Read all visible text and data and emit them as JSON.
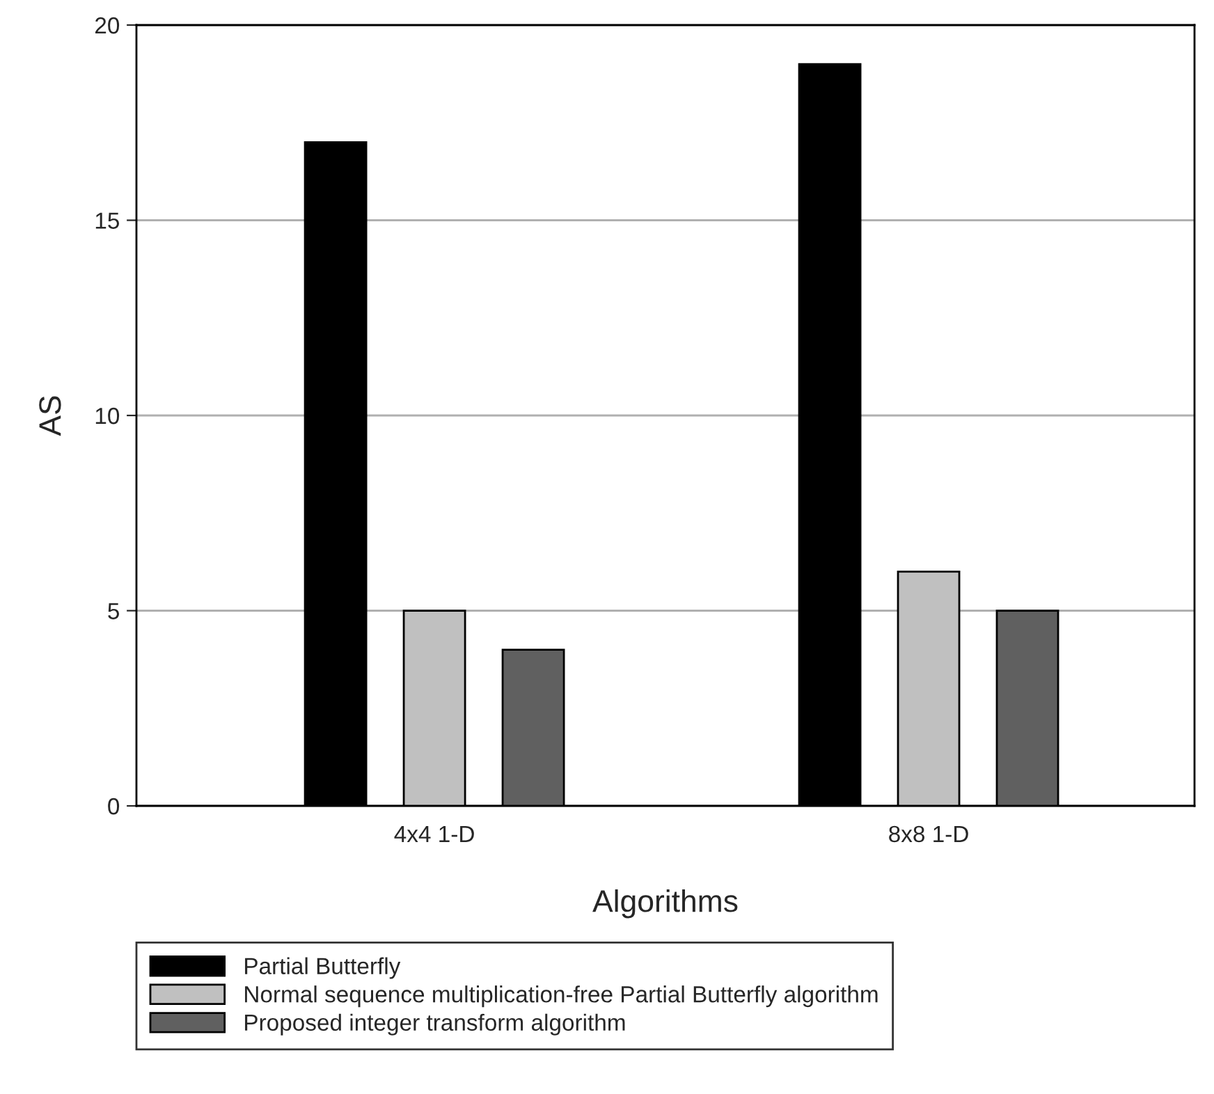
{
  "chart_data": {
    "type": "bar",
    "xlabel": "Algorithms",
    "ylabel": "AS",
    "categories": [
      "4x4 1-D",
      "8x8 1-D"
    ],
    "series": [
      {
        "name": "Partial Butterfly",
        "color": "#000000",
        "values": [
          17,
          19
        ]
      },
      {
        "name": "Normal sequence multiplication-free Partial Butterfly algorithm",
        "color": "#c0c0c0",
        "values": [
          5,
          6
        ]
      },
      {
        "name": "Proposed integer transform algorithm",
        "color": "#606060",
        "values": [
          4,
          5
        ]
      }
    ],
    "ylim": [
      0,
      20
    ],
    "yticks": [
      0,
      5,
      10,
      15,
      20
    ],
    "grid": "y",
    "legend": "bottom"
  }
}
